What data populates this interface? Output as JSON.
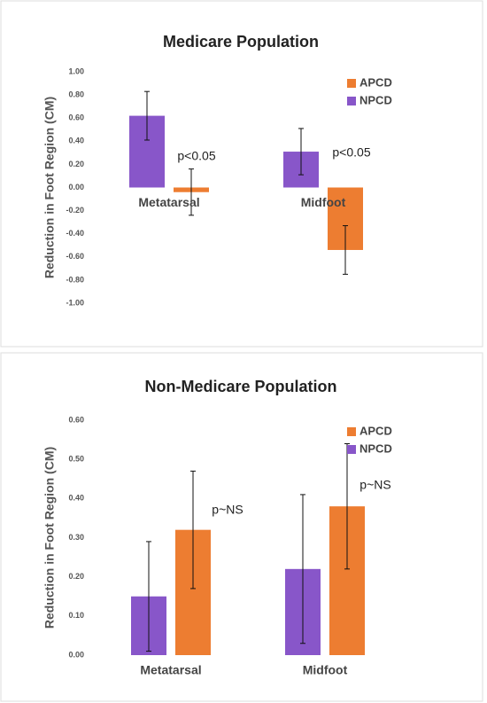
{
  "chart_data": [
    {
      "type": "bar",
      "title": "Medicare Population",
      "y_label": "Reduction in Foot Region (CM)",
      "categories": [
        "Metatarsal",
        "Midfoot"
      ],
      "series": [
        {
          "name": "NPCD",
          "color": "#8856c9",
          "values": [
            0.62,
            0.31
          ],
          "errors": [
            0.21,
            0.2
          ]
        },
        {
          "name": "APCD",
          "color": "#ed7d31",
          "values": [
            -0.04,
            -0.54
          ],
          "errors": [
            0.2,
            0.21
          ]
        }
      ],
      "annotations": [
        "p<0.05",
        "p<0.05"
      ],
      "ylim": [
        -1,
        1
      ],
      "yticks": [
        {
          "value": -1,
          "label": "-1.00"
        },
        {
          "value": -0.8,
          "label": "-0.80"
        },
        {
          "value": -0.6,
          "label": "-0.60"
        },
        {
          "value": -0.4,
          "label": "-0.40"
        },
        {
          "value": -0.2,
          "label": "-0.20"
        },
        {
          "value": 0,
          "label": "0.00"
        },
        {
          "value": 0.2,
          "label": "0.20"
        },
        {
          "value": 0.4,
          "label": "0.40"
        },
        {
          "value": 0.6,
          "label": "0.60"
        },
        {
          "value": 0.8,
          "label": "0.80"
        },
        {
          "value": 1,
          "label": "1.00"
        }
      ],
      "legend": "top-right"
    },
    {
      "type": "bar",
      "title": "Non-Medicare Population",
      "y_label": "Reduction in Foot Region (CM)",
      "categories": [
        "Metatarsal",
        "Midfoot"
      ],
      "series": [
        {
          "name": "NPCD",
          "color": "#8856c9",
          "values": [
            0.15,
            0.22
          ],
          "errors": [
            0.14,
            0.19
          ]
        },
        {
          "name": "APCD",
          "color": "#ed7d31",
          "values": [
            0.32,
            0.38
          ],
          "errors": [
            0.15,
            0.16
          ]
        }
      ],
      "annotations": [
        "p~NS",
        "p~NS"
      ],
      "ylim": [
        0,
        0.6
      ],
      "yticks": [
        {
          "value": 0,
          "label": "0.00"
        },
        {
          "value": 0.1,
          "label": "0.10"
        },
        {
          "value": 0.2,
          "label": "0.20"
        },
        {
          "value": 0.3,
          "label": "0.30"
        },
        {
          "value": 0.4,
          "label": "0.40"
        },
        {
          "value": 0.5,
          "label": "0.50"
        },
        {
          "value": 0.6,
          "label": "0.60"
        }
      ],
      "legend": "top-right"
    }
  ]
}
